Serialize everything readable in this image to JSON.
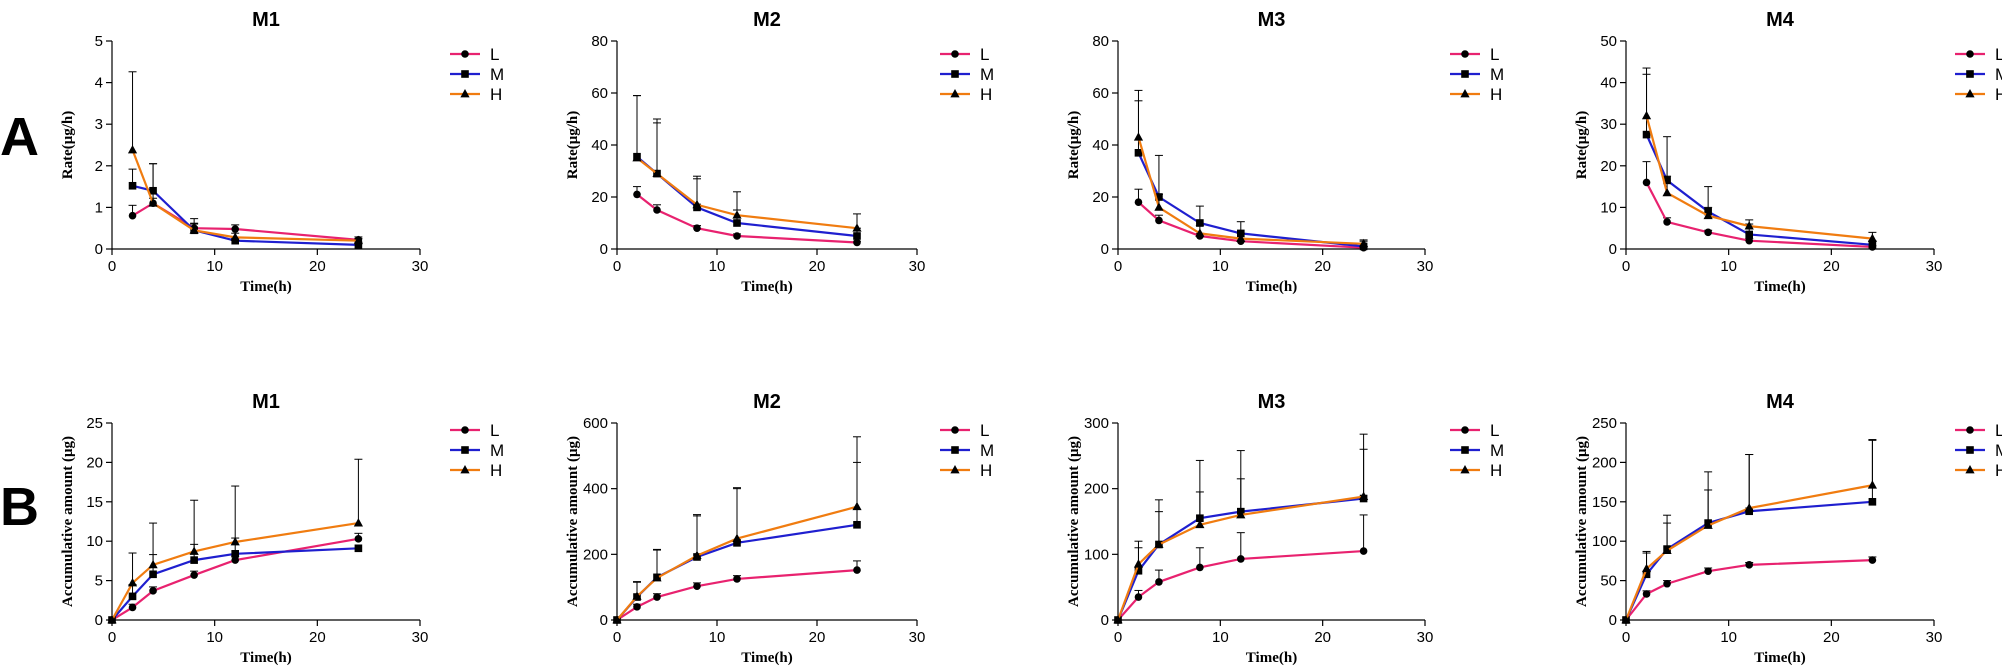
{
  "row_labels": [
    "A",
    "B"
  ],
  "colors": {
    "L": "#e8226f",
    "M": "#1f1fcf",
    "H": "#f07c10"
  },
  "chart_data": [
    {
      "type": "line",
      "row": "A",
      "title": "M1",
      "xlabel": "Time(h)",
      "ylabel": "Rate(μg/h)",
      "xlim": [
        0,
        30
      ],
      "ylim": [
        0,
        5
      ],
      "xticks": [
        0,
        10,
        20,
        30
      ],
      "yticks": [
        0,
        1,
        2,
        3,
        4,
        5
      ],
      "x": [
        2,
        4,
        8,
        12,
        24
      ],
      "series": [
        {
          "name": "L",
          "marker": "circle",
          "values": [
            0.8,
            1.1,
            0.5,
            0.48,
            0.22
          ],
          "errors": [
            0.25,
            0.12,
            0.12,
            0.1,
            0.07
          ]
        },
        {
          "name": "M",
          "marker": "square",
          "values": [
            1.52,
            1.4,
            0.45,
            0.2,
            0.1
          ],
          "errors": [
            0.4,
            0.65,
            0.15,
            0.05,
            0.05
          ]
        },
        {
          "name": "H",
          "marker": "triangle",
          "values": [
            2.38,
            1.1,
            0.45,
            0.28,
            0.2
          ],
          "errors": [
            1.88,
            0.95,
            0.28,
            0.1,
            0.05
          ]
        }
      ]
    },
    {
      "type": "line",
      "row": "A",
      "title": "M2",
      "xlabel": "Time(h)",
      "ylabel": "Rate(μg/h)",
      "xlim": [
        0,
        30
      ],
      "ylim": [
        0,
        80
      ],
      "xticks": [
        0,
        10,
        20,
        30
      ],
      "yticks": [
        0,
        20,
        40,
        60,
        80
      ],
      "x": [
        2,
        4,
        8,
        12,
        24
      ],
      "series": [
        {
          "name": "L",
          "marker": "circle",
          "values": [
            21,
            15,
            8,
            5,
            2.5
          ],
          "errors": [
            3,
            2,
            1,
            0.8,
            0.5
          ]
        },
        {
          "name": "M",
          "marker": "square",
          "values": [
            35.5,
            29,
            16,
            10,
            5
          ],
          "errors": [
            23.5,
            19.5,
            11,
            5,
            3
          ]
        },
        {
          "name": "H",
          "marker": "triangle",
          "values": [
            35,
            29,
            17,
            13,
            8
          ],
          "errors": [
            24,
            21,
            11,
            9,
            5.5
          ]
        }
      ]
    },
    {
      "type": "line",
      "row": "A",
      "title": "M3",
      "xlabel": "Time(h)",
      "ylabel": "Rate(μg/h)",
      "xlim": [
        0,
        30
      ],
      "ylim": [
        0,
        80
      ],
      "xticks": [
        0,
        10,
        20,
        30
      ],
      "yticks": [
        0,
        20,
        40,
        60,
        80
      ],
      "x": [
        2,
        4,
        8,
        12,
        24
      ],
      "series": [
        {
          "name": "L",
          "marker": "circle",
          "values": [
            18,
            11,
            5,
            3,
            0.5
          ],
          "errors": [
            5,
            2,
            1,
            1,
            0.5
          ]
        },
        {
          "name": "M",
          "marker": "square",
          "values": [
            37,
            20,
            10,
            6,
            1
          ],
          "errors": [
            20,
            16,
            6.5,
            4.5,
            2
          ]
        },
        {
          "name": "H",
          "marker": "triangle",
          "values": [
            43,
            16,
            6,
            4,
            2
          ],
          "errors": [
            18,
            5,
            3,
            2,
            1.5
          ]
        }
      ]
    },
    {
      "type": "line",
      "row": "A",
      "title": "M4",
      "xlabel": "Time(h)",
      "ylabel": "Rate(μg/h)",
      "xlim": [
        0,
        30
      ],
      "ylim": [
        0,
        50
      ],
      "xticks": [
        0,
        10,
        20,
        30
      ],
      "yticks": [
        0,
        10,
        20,
        30,
        40,
        50
      ],
      "x": [
        2,
        4,
        8,
        12,
        24
      ],
      "series": [
        {
          "name": "L",
          "marker": "circle",
          "values": [
            16,
            6.5,
            4,
            2,
            0.5
          ],
          "errors": [
            5,
            1,
            0.5,
            0.5,
            0.3
          ]
        },
        {
          "name": "M",
          "marker": "square",
          "values": [
            27.5,
            16.5,
            9,
            3.5,
            1
          ],
          "errors": [
            14.5,
            10.5,
            6,
            2.5,
            1
          ]
        },
        {
          "name": "H",
          "marker": "triangle",
          "values": [
            32,
            13.5,
            8,
            5.5,
            2.5
          ],
          "errors": [
            11.5,
            4,
            2,
            1.5,
            1.5
          ]
        }
      ]
    },
    {
      "type": "line",
      "row": "B",
      "title": "M1",
      "xlabel": "Time(h)",
      "ylabel": "Accumulative amount (μg)",
      "xlim": [
        0,
        30
      ],
      "ylim": [
        0,
        25
      ],
      "xticks": [
        0,
        10,
        20,
        30
      ],
      "yticks": [
        0,
        5,
        10,
        15,
        20,
        25
      ],
      "x": [
        0,
        2,
        4,
        8,
        12,
        24
      ],
      "series": [
        {
          "name": "L",
          "marker": "circle",
          "values": [
            0,
            1.6,
            3.7,
            5.7,
            7.6,
            10.3
          ],
          "errors": [
            0,
            0.4,
            0.5,
            0.5,
            0.5,
            0.7
          ]
        },
        {
          "name": "M",
          "marker": "square",
          "values": [
            0,
            3,
            5.8,
            7.6,
            8.4,
            9.1
          ],
          "errors": [
            0,
            1.5,
            2.5,
            2,
            2,
            0
          ]
        },
        {
          "name": "H",
          "marker": "triangle",
          "values": [
            0,
            4.7,
            7,
            8.7,
            9.9,
            12.3
          ],
          "errors": [
            0,
            3.8,
            5.3,
            6.5,
            7.1,
            8.1
          ]
        }
      ]
    },
    {
      "type": "line",
      "row": "B",
      "title": "M2",
      "xlabel": "Time(h)",
      "ylabel": "Accumulative amount (μg)",
      "xlim": [
        0,
        30
      ],
      "ylim": [
        0,
        600
      ],
      "xticks": [
        0,
        10,
        20,
        30
      ],
      "yticks": [
        0,
        200,
        400,
        600
      ],
      "x": [
        0,
        2,
        4,
        8,
        12,
        24
      ],
      "series": [
        {
          "name": "L",
          "marker": "circle",
          "values": [
            0,
            40,
            70,
            103,
            125,
            152
          ],
          "errors": [
            0,
            8,
            10,
            10,
            10,
            28
          ]
        },
        {
          "name": "M",
          "marker": "square",
          "values": [
            0,
            70,
            130,
            192,
            235,
            290
          ],
          "errors": [
            0,
            45,
            85,
            125,
            165,
            190
          ]
        },
        {
          "name": "H",
          "marker": "triangle",
          "values": [
            0,
            72,
            128,
            196,
            248,
            345
          ],
          "errors": [
            0,
            45,
            85,
            125,
            155,
            213
          ]
        }
      ]
    },
    {
      "type": "line",
      "row": "B",
      "title": "M3",
      "xlabel": "Time(h)",
      "ylabel": "Accumulative amount (μg)",
      "xlim": [
        0,
        30
      ],
      "ylim": [
        0,
        300
      ],
      "xticks": [
        0,
        10,
        20,
        30
      ],
      "yticks": [
        0,
        100,
        200,
        300
      ],
      "x": [
        0,
        2,
        4,
        8,
        12,
        24
      ],
      "series": [
        {
          "name": "L",
          "marker": "circle",
          "values": [
            0,
            35,
            58,
            80,
            93,
            105
          ],
          "errors": [
            0,
            10,
            18,
            30,
            40,
            55
          ]
        },
        {
          "name": "M",
          "marker": "square",
          "values": [
            0,
            75,
            115,
            155,
            165,
            185
          ],
          "errors": [
            0,
            35,
            50,
            88,
            93,
            98
          ]
        },
        {
          "name": "H",
          "marker": "triangle",
          "values": [
            0,
            85,
            115,
            145,
            160,
            188
          ],
          "errors": [
            0,
            35,
            68,
            50,
            55,
            72
          ]
        }
      ]
    },
    {
      "type": "line",
      "row": "B",
      "title": "M4",
      "xlabel": "Time(h)",
      "ylabel": "Accumulative amount (μg)",
      "xlim": [
        0,
        30
      ],
      "ylim": [
        0,
        250
      ],
      "xticks": [
        0,
        10,
        20,
        30
      ],
      "yticks": [
        0,
        50,
        100,
        150,
        200,
        250
      ],
      "x": [
        0,
        2,
        4,
        8,
        12,
        24
      ],
      "series": [
        {
          "name": "L",
          "marker": "circle",
          "values": [
            0,
            33,
            46,
            62,
            70,
            76
          ],
          "errors": [
            0,
            4,
            4,
            4,
            3,
            4
          ]
        },
        {
          "name": "M",
          "marker": "square",
          "values": [
            0,
            58,
            90,
            123,
            138,
            150
          ],
          "errors": [
            0,
            27,
            43,
            65,
            72,
            78
          ]
        },
        {
          "name": "H",
          "marker": "triangle",
          "values": [
            0,
            65,
            88,
            120,
            142,
            171
          ],
          "errors": [
            0,
            22,
            35,
            45,
            68,
            58
          ]
        }
      ]
    }
  ]
}
